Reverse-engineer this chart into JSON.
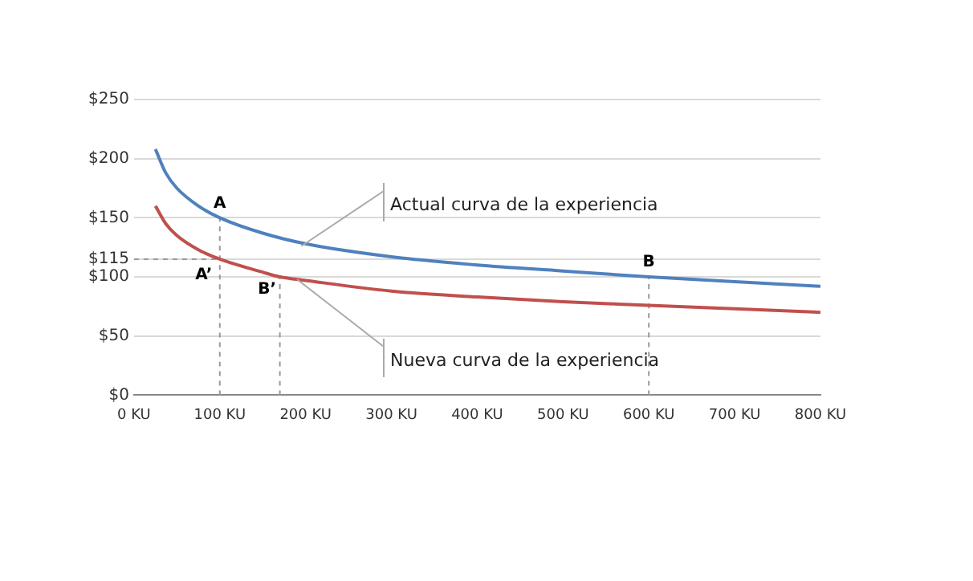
{
  "chart_data": {
    "type": "line",
    "marker": "none",
    "legend": false,
    "grid": "y",
    "line_style": "solid",
    "xlim": [
      0,
      800
    ],
    "xticks": [
      {
        "value": 0,
        "label": "0 KU"
      },
      {
        "value": 100,
        "label": "100 KU"
      },
      {
        "value": 200,
        "label": "200 KU"
      },
      {
        "value": 300,
        "label": "300 KU"
      },
      {
        "value": 400,
        "label": "400 KU"
      },
      {
        "value": 500,
        "label": "500 KU"
      },
      {
        "value": 600,
        "label": "600 KU"
      },
      {
        "value": 700,
        "label": "700 KU"
      },
      {
        "value": 800,
        "label": "800 KU"
      }
    ],
    "ylim": [
      0,
      250
    ],
    "yticks": [
      {
        "value": 0,
        "label": "$0"
      },
      {
        "value": 50,
        "label": "$50"
      },
      {
        "value": 100,
        "label": "$100"
      },
      {
        "value": 115,
        "label": "$115"
      },
      {
        "value": 150,
        "label": "$150"
      },
      {
        "value": 200,
        "label": "$200"
      },
      {
        "value": 250,
        "label": "$250"
      }
    ],
    "series": [
      {
        "color": "#4f81bd",
        "x": [
          25,
          37,
          50,
          75,
          100,
          150,
          200,
          300,
          400,
          500,
          600,
          700,
          800
        ],
        "values": [
          208,
          188,
          175,
          160,
          150,
          137,
          128,
          117,
          110,
          105,
          100,
          96,
          92
        ]
      },
      {
        "color": "#c0504d",
        "x": [
          25,
          37,
          50,
          75,
          100,
          150,
          170,
          200,
          300,
          400,
          500,
          600,
          700,
          800
        ],
        "values": [
          160,
          145,
          135,
          123,
          115,
          104,
          100,
          97,
          88,
          83,
          79,
          76,
          73,
          70
        ]
      },
      {
        "color": "#999999",
        "line_style": "dashed",
        "x": [
          100,
          100
        ],
        "values": [
          0,
          150
        ]
      },
      {
        "color": "#999999",
        "line_style": "dashed",
        "x": [
          0,
          100
        ],
        "values": [
          115,
          115
        ]
      },
      {
        "color": "#999999",
        "line_style": "dashed",
        "x": [
          170,
          170
        ],
        "values": [
          0,
          100
        ]
      },
      {
        "color": "#999999",
        "line_style": "dashed",
        "x": [
          600,
          600
        ],
        "values": [
          0,
          100
        ]
      }
    ],
    "annotations": [
      {
        "text": "A",
        "x": 100,
        "y": 150
      },
      {
        "text": "A’",
        "x": 100,
        "y": 115
      },
      {
        "text": "B’",
        "x": 170,
        "y": 100
      },
      {
        "text": "B",
        "x": 600,
        "y": 100
      },
      {
        "text": "Actual curva de la experiencia",
        "x": 195,
        "y": 126
      },
      {
        "text": "Nueva curva de la experiencia",
        "x": 190,
        "y": 98
      }
    ]
  }
}
